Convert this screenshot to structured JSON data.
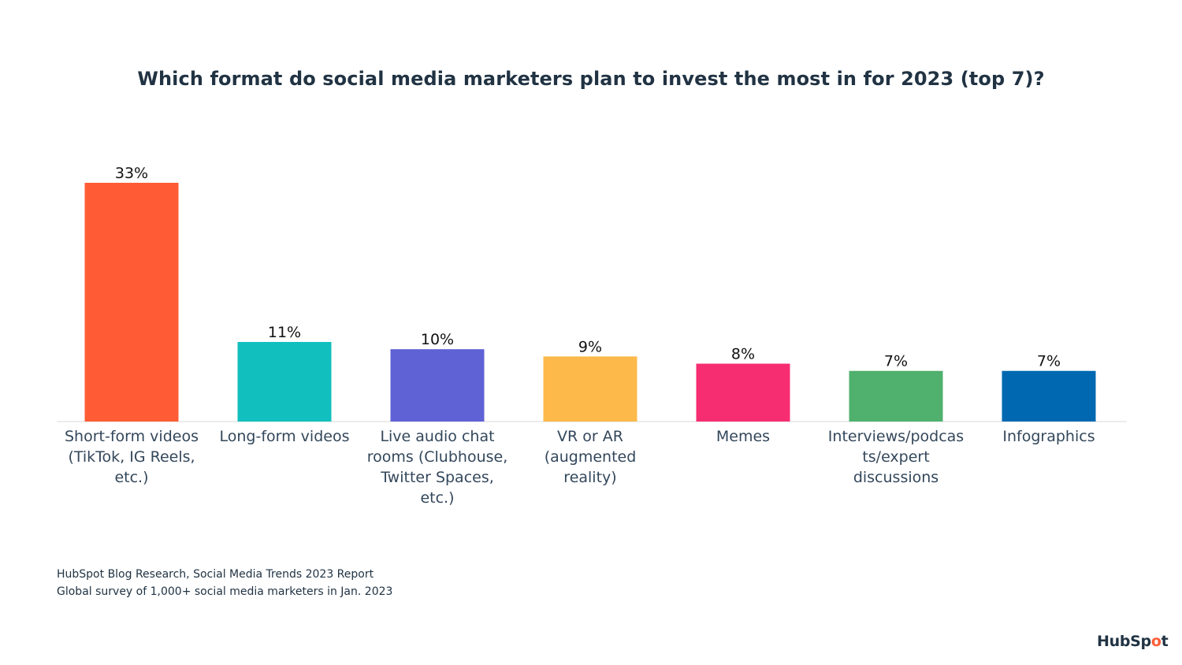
{
  "chart_data": {
    "type": "bar",
    "title": "Which format do social media marketers plan to invest the most in for 2023 (top 7)?",
    "categories": [
      [
        "Short-form videos",
        "(TikTok, IG Reels,",
        "etc.)"
      ],
      [
        "Long-form videos"
      ],
      [
        "Live audio chat",
        "rooms (Clubhouse,",
        "Twitter Spaces,",
        "etc.)"
      ],
      [
        "VR or AR",
        "(augmented",
        "reality)"
      ],
      [
        "Memes"
      ],
      [
        "Interviews/podcas",
        "ts/expert",
        "discussions"
      ],
      [
        "Infographics"
      ]
    ],
    "values": [
      33,
      11,
      10,
      9,
      8,
      7,
      7
    ],
    "value_labels": [
      "33%",
      "11%",
      "10%",
      "9%",
      "8%",
      "7%",
      "7%"
    ],
    "colors": [
      "#ff5c35",
      "#11bfbe",
      "#5f62d5",
      "#fdb94a",
      "#f72d72",
      "#50b06e",
      "#0068b1"
    ],
    "ylim": [
      0,
      33
    ],
    "grid": false,
    "legend": "none",
    "xlabel": "",
    "ylabel": ""
  },
  "footer": {
    "source_line_1": "HubSpot Blog Research, Social Media Trends 2023 Report",
    "source_line_2": "Global survey of 1,000+ social media marketers in Jan. 2023"
  },
  "logo": {
    "text_start": "HubSp",
    "text_sprocket": "o",
    "text_end": "t"
  }
}
